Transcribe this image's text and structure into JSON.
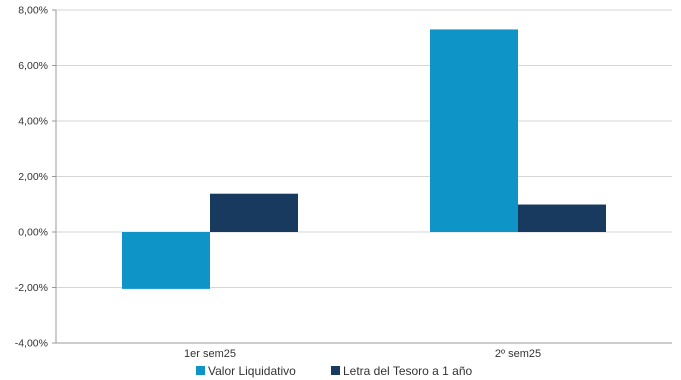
{
  "chart_data": {
    "type": "bar",
    "categories": [
      "1er sem25",
      "2º sem25"
    ],
    "series": [
      {
        "name": "Valor Liquidativo",
        "values": [
          -2.05,
          7.3
        ],
        "color": "#0f94c8"
      },
      {
        "name": "Letra del Tesoro a 1 año",
        "values": [
          1.38,
          0.99
        ],
        "color": "#173a5e"
      }
    ],
    "ylim": [
      -4,
      8
    ],
    "yticks": [
      8,
      6,
      4,
      2,
      0,
      -2,
      -4
    ],
    "ytick_labels": [
      "8,00%",
      "6,00%",
      "4,00%",
      "2,00%",
      "0,00%",
      "-2,00%",
      "-4,00%"
    ],
    "grid": true,
    "legend_position": "bottom"
  }
}
